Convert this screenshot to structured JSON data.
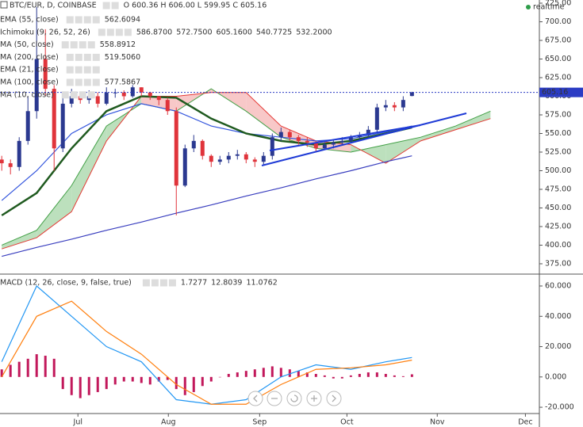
{
  "chart_data": [
    {
      "type": "candlestick",
      "symbol": "BTC/EUR, D, COINBASE",
      "ohlc_text": "O 600.36 H 606.00 L 599.95 C 605.16",
      "realtime": "realtime",
      "last_price": {
        "value": 605.16,
        "label": "605.16"
      },
      "up_color": "#2b3990",
      "down_color": "#e0343b",
      "open": [
        515,
        510,
        505,
        540,
        580,
        650,
        610,
        530,
        590,
        600,
        595,
        600,
        590,
        605,
        605,
        600,
        612,
        605,
        600,
        595,
        580,
        480,
        530,
        540,
        520,
        512,
        515,
        520,
        522,
        515,
        512,
        520,
        545,
        552,
        545,
        540,
        538,
        530,
        535,
        538,
        540,
        545,
        548,
        555,
        585,
        588,
        585,
        600.36
      ],
      "high": [
        520,
        515,
        545,
        600,
        720,
        690,
        615,
        605,
        610,
        605,
        608,
        605,
        612,
        610,
        608,
        615,
        612,
        606,
        600,
        598,
        585,
        535,
        548,
        542,
        522,
        520,
        525,
        528,
        525,
        518,
        525,
        550,
        558,
        555,
        548,
        545,
        540,
        538,
        542,
        545,
        548,
        552,
        560,
        590,
        595,
        592,
        600,
        606
      ],
      "low": [
        500,
        495,
        500,
        535,
        570,
        600,
        500,
        525,
        585,
        590,
        590,
        585,
        588,
        598,
        595,
        598,
        600,
        595,
        588,
        575,
        440,
        478,
        525,
        515,
        505,
        508,
        510,
        515,
        510,
        505,
        508,
        515,
        540,
        540,
        535,
        532,
        525,
        528,
        530,
        535,
        538,
        540,
        545,
        552,
        580,
        580,
        580,
        599.95
      ],
      "close": [
        510,
        505,
        540,
        580,
        650,
        610,
        530,
        590,
        600,
        595,
        600,
        590,
        605,
        605,
        600,
        612,
        605,
        600,
        595,
        580,
        480,
        530,
        540,
        520,
        512,
        515,
        520,
        522,
        515,
        512,
        520,
        545,
        552,
        545,
        540,
        538,
        530,
        535,
        538,
        540,
        545,
        548,
        555,
        585,
        588,
        585,
        595,
        605.16
      ],
      "cloud": {
        "x": [
          0,
          4,
          8,
          12,
          16,
          20,
          24,
          28,
          32,
          36,
          40,
          44,
          48,
          52,
          56
        ],
        "span_a": [
          400,
          420,
          480,
          560,
          590,
          580,
          610,
          580,
          545,
          530,
          525,
          535,
          545,
          560,
          580
        ],
        "span_b": [
          395,
          410,
          445,
          540,
          600,
          600,
          605,
          605,
          560,
          540,
          535,
          510,
          540,
          555,
          570
        ],
        "up_color": "#a5d6a7",
        "down_color": "#f5b5b5",
        "a_color": "#43a047",
        "b_color": "#e53935"
      },
      "legend": [
        {
          "name": "EMA (55, close)",
          "values": [
            {
              "text": "562.6094",
              "color": "#333333"
            }
          ],
          "color": "#3355dd",
          "x": [
            0,
            4,
            8,
            12,
            16,
            20,
            24,
            28,
            32,
            36,
            40,
            44,
            47
          ],
          "line": [
            460,
            500,
            550,
            575,
            590,
            580,
            560,
            550,
            545,
            540,
            543,
            552,
            560
          ]
        },
        {
          "name": "Ichimoku (9, 26, 52, 26)",
          "values": [
            {
              "text": "586.8700",
              "color": "#1e73be"
            },
            {
              "text": "572.7500",
              "color": "#8b1a1a"
            },
            {
              "text": "605.1600",
              "color": "#2e7d32"
            },
            {
              "text": "540.7725",
              "color": "#43a047"
            },
            {
              "text": "532.2000",
              "color": "#e53935"
            }
          ]
        },
        {
          "name": "MA (50, close)",
          "values": [
            {
              "text": "558.8912",
              "color": "#1f5a1f"
            }
          ],
          "color": "#1f5a1f",
          "x": [
            0,
            4,
            8,
            12,
            16,
            20,
            24,
            28,
            32,
            36,
            40,
            44,
            47
          ],
          "line": [
            440,
            470,
            530,
            580,
            600,
            598,
            570,
            550,
            540,
            535,
            540,
            550,
            558
          ]
        },
        {
          "name": "MA (200, close)",
          "values": [
            {
              "text": "519.5060",
              "color": "#22226e"
            }
          ],
          "color": "#3a3fbf",
          "x": [
            0,
            4,
            8,
            12,
            16,
            20,
            24,
            28,
            32,
            36,
            40,
            44,
            47
          ],
          "line": [
            385,
            397,
            408,
            420,
            431,
            443,
            454,
            466,
            477,
            489,
            500,
            512,
            520
          ]
        },
        {
          "name": "EMA (21, close)",
          "faded": true,
          "values": []
        },
        {
          "name": "MA (100, close)",
          "values": [
            {
              "text": "577.5867",
              "color": "#333333"
            }
          ]
        },
        {
          "name": "MA (10, close)",
          "faded": true,
          "values": []
        }
      ],
      "ylim": [
        362.2,
        729.26
      ],
      "xlim": [
        -0.2,
        61.6
      ],
      "yticks": [
        {
          "value": 725,
          "label": "725.00"
        },
        {
          "value": 700,
          "label": "700.00"
        },
        {
          "value": 675,
          "label": "675.00"
        },
        {
          "value": 650,
          "label": "650.00"
        },
        {
          "value": 625,
          "label": "625.00"
        },
        {
          "value": 600,
          "label": "600.00"
        },
        {
          "value": 575,
          "label": "575.00"
        },
        {
          "value": 550,
          "label": "550.00"
        },
        {
          "value": 525,
          "label": "525.00"
        },
        {
          "value": 500,
          "label": "500.00"
        },
        {
          "value": 475,
          "label": "475.00"
        },
        {
          "value": 450,
          "label": "450.00"
        },
        {
          "value": 425,
          "label": "425.00"
        },
        {
          "value": 400,
          "label": "400.00"
        },
        {
          "value": 375,
          "label": "375.00"
        }
      ],
      "xticks": [
        {
          "value": 8.73,
          "label": "Jul"
        },
        {
          "value": 19.09,
          "label": "Aug"
        },
        {
          "value": 29.55,
          "label": "Sep"
        },
        {
          "value": 39.55,
          "label": "Oct"
        },
        {
          "value": 49.9,
          "label": "Nov"
        },
        {
          "value": 60,
          "label": "Dec"
        }
      ]
    },
    {
      "type": "macd",
      "name": "MACD (12, 26, close, 9, false, true)",
      "legend_values": [
        {
          "text": "1.7277",
          "color": "#c2185b"
        },
        {
          "text": "12.8039",
          "color": "#1e73be"
        },
        {
          "text": "11.0762",
          "color": "#e67e22"
        }
      ],
      "histogram": {
        "color": "#c2185b",
        "values": [
          5,
          8,
          10,
          12,
          15,
          14,
          12,
          -8,
          -12,
          -14,
          -12,
          -10,
          -8,
          -5,
          -3,
          -3,
          -4,
          -5,
          -3,
          -2,
          -8,
          -12,
          -10,
          -6,
          -3,
          0,
          2,
          3,
          4,
          5,
          6,
          7,
          6,
          5,
          4,
          3,
          2,
          1,
          -1,
          -1,
          1,
          2,
          3,
          3,
          2,
          1,
          0.5,
          1.7277
        ]
      },
      "series": [
        {
          "color": "#2196f3",
          "x": [
            0,
            4,
            8,
            12,
            16,
            20,
            24,
            28,
            32,
            36,
            40,
            44,
            47
          ],
          "values": [
            10,
            60,
            40,
            20,
            10,
            -15,
            -18,
            -15,
            0,
            8,
            5,
            10,
            12.8039
          ]
        },
        {
          "color": "#ff7f0e",
          "x": [
            0,
            4,
            8,
            12,
            16,
            20,
            24,
            28,
            32,
            36,
            40,
            44,
            47
          ],
          "values": [
            0,
            40,
            50,
            30,
            15,
            -5,
            -18,
            -18,
            -5,
            5,
            6,
            8,
            11.0762
          ]
        }
      ],
      "ylim": [
        -23.1,
        66.8
      ],
      "yticks": [
        {
          "value": 60,
          "label": "60.000"
        },
        {
          "value": 40,
          "label": "40.000"
        },
        {
          "value": 20,
          "label": "20.000"
        },
        {
          "value": 0,
          "label": "0.000"
        },
        {
          "value": -20,
          "label": "-20.000"
        }
      ]
    }
  ]
}
